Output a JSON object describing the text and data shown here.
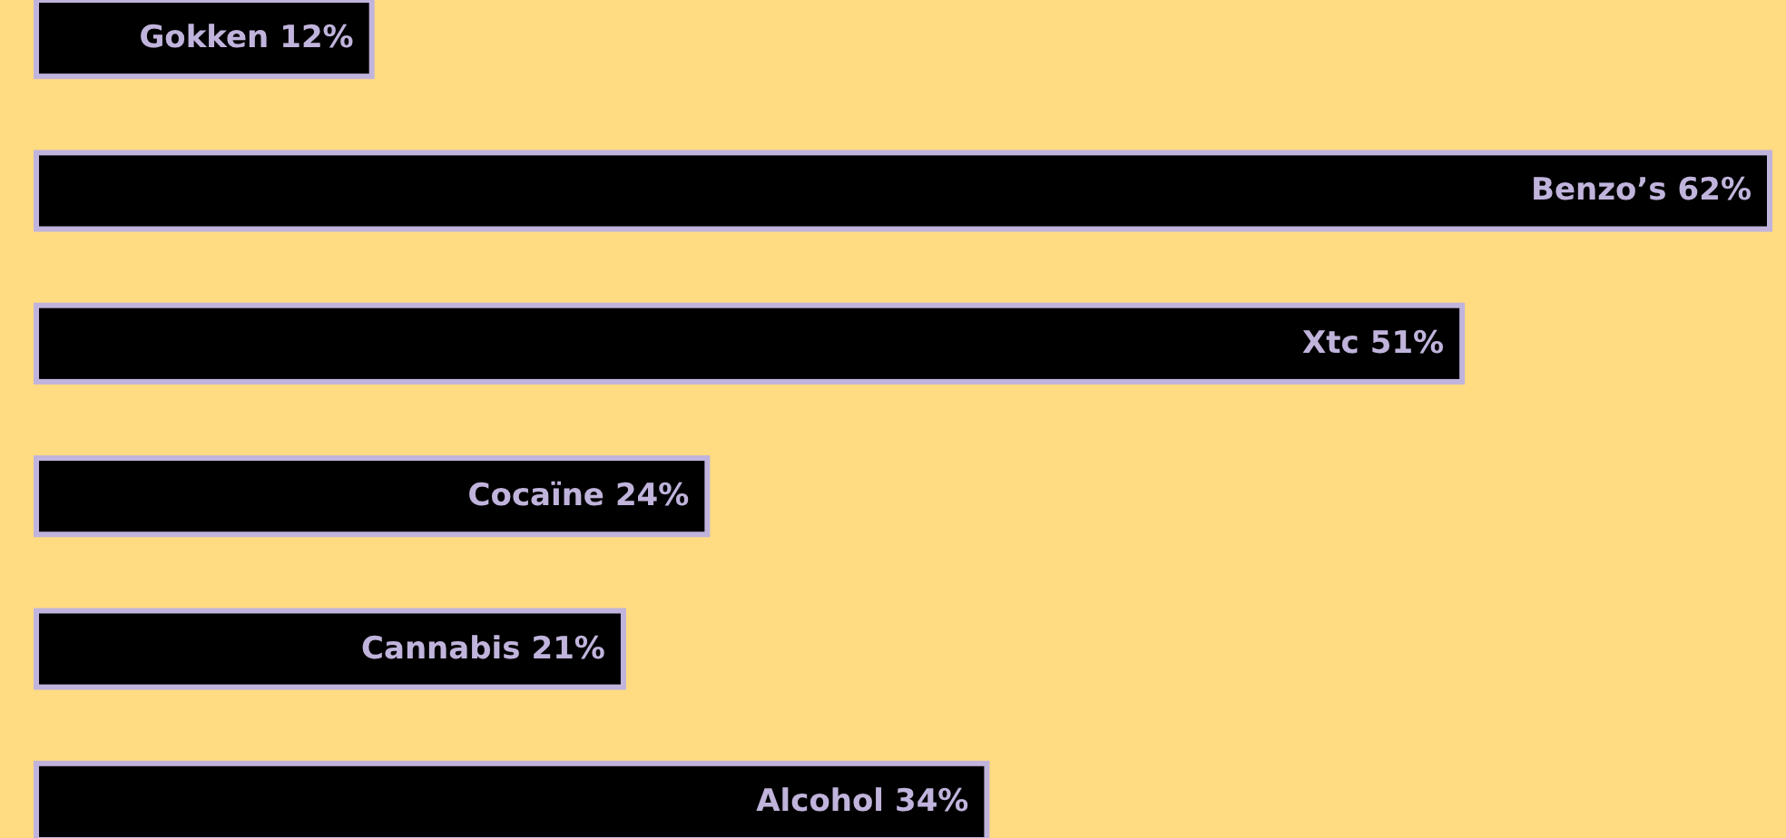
{
  "chart_data": {
    "type": "bar",
    "orientation": "horizontal",
    "categories": [
      "Gokken",
      "Benzo’s",
      "Xtc",
      "Cocaïne",
      "Cannabis",
      "Alcohol"
    ],
    "values": [
      12,
      62,
      51,
      24,
      21,
      34
    ],
    "value_labels": [
      "12%",
      "62%",
      "51%",
      "24%",
      "21%",
      "34%"
    ],
    "color": "#000000"
  }
}
